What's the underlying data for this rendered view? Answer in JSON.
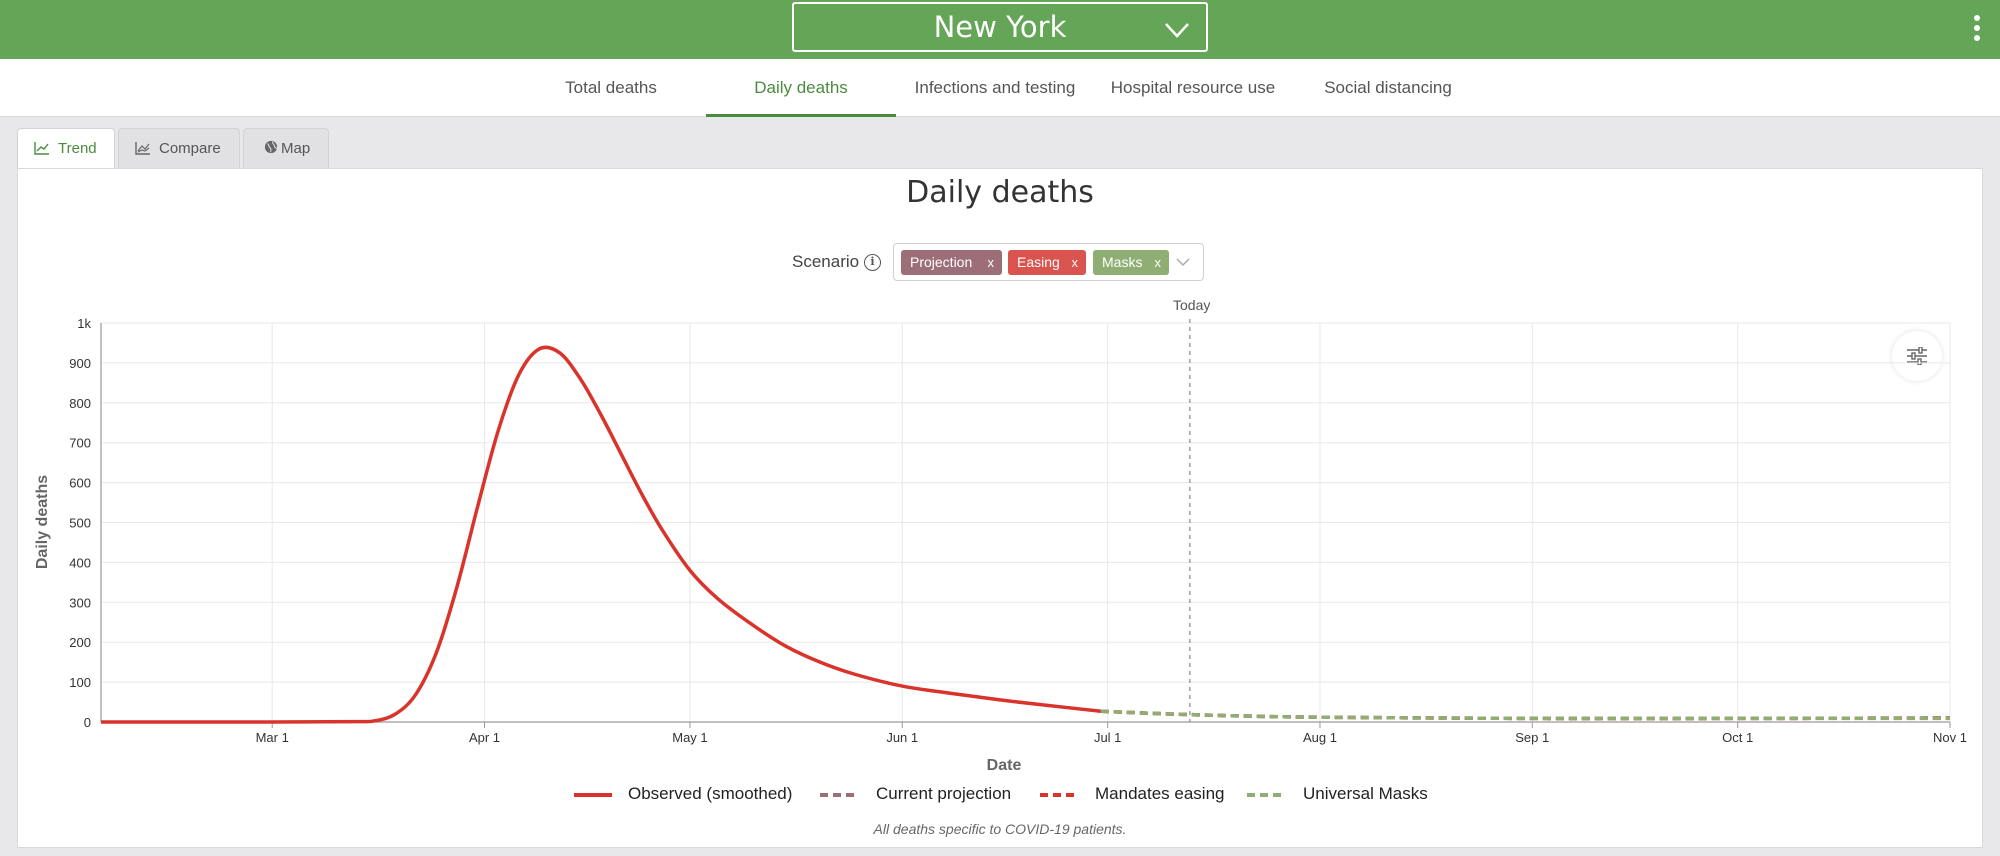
{
  "header": {
    "location": "New York",
    "menu_icon": "kebab-menu-icon",
    "background": "#64a557"
  },
  "tabs": [
    {
      "label": "Total deaths",
      "active": false
    },
    {
      "label": "Daily deaths",
      "active": true
    },
    {
      "label": "Infections and testing",
      "active": false
    },
    {
      "label": "Hospital resource use",
      "active": false
    },
    {
      "label": "Social distancing",
      "active": false
    }
  ],
  "view_tabs": [
    {
      "label": "Trend",
      "icon": "line-chart-icon",
      "active": true
    },
    {
      "label": "Compare",
      "icon": "compare-chart-icon",
      "active": false
    },
    {
      "label": "Map",
      "icon": "globe-icon",
      "active": false
    }
  ],
  "scenario": {
    "label": "Scenario",
    "chips": [
      {
        "label": "Projection",
        "color": "#9b6e78"
      },
      {
        "label": "Easing",
        "color": "#d9534f"
      },
      {
        "label": "Masks",
        "color": "#8fae74"
      }
    ]
  },
  "chart_data": {
    "type": "line",
    "title": "Daily deaths",
    "xlabel": "Date",
    "ylabel": "Daily deaths",
    "ylim": [
      0,
      1000
    ],
    "y_ticks": [
      0,
      100,
      200,
      300,
      400,
      500,
      600,
      700,
      800,
      900,
      1000
    ],
    "y_tick_labels": [
      "0",
      "100",
      "200",
      "300",
      "400",
      "500",
      "600",
      "700",
      "800",
      "900",
      "1k"
    ],
    "x_range": [
      "2020-02-05",
      "2020-11-01"
    ],
    "x_ticks": [
      {
        "date": "2020-03-01",
        "label": "Mar 1"
      },
      {
        "date": "2020-04-01",
        "label": "Apr 1"
      },
      {
        "date": "2020-05-01",
        "label": "May 1"
      },
      {
        "date": "2020-06-01",
        "label": "Jun 1"
      },
      {
        "date": "2020-07-01",
        "label": "Jul 1"
      },
      {
        "date": "2020-08-01",
        "label": "Aug 1"
      },
      {
        "date": "2020-09-01",
        "label": "Sep 1"
      },
      {
        "date": "2020-10-01",
        "label": "Oct 1"
      },
      {
        "date": "2020-11-01",
        "label": "Nov 1"
      }
    ],
    "today": {
      "date": "2020-07-13",
      "label": "Today"
    },
    "grid": true,
    "legend_position": "bottom",
    "series": [
      {
        "name": "Observed (smoothed)",
        "color": "#d9342b",
        "style": "solid",
        "points": [
          [
            "2020-02-05",
            0
          ],
          [
            "2020-03-01",
            0
          ],
          [
            "2020-03-13",
            1
          ],
          [
            "2020-03-16",
            3
          ],
          [
            "2020-03-19",
            20
          ],
          [
            "2020-03-22",
            70
          ],
          [
            "2020-03-25",
            175
          ],
          [
            "2020-03-28",
            340
          ],
          [
            "2020-03-31",
            540
          ],
          [
            "2020-04-03",
            730
          ],
          [
            "2020-04-06",
            870
          ],
          [
            "2020-04-09",
            935
          ],
          [
            "2020-04-12",
            925
          ],
          [
            "2020-04-15",
            860
          ],
          [
            "2020-04-18",
            770
          ],
          [
            "2020-04-21",
            670
          ],
          [
            "2020-04-24",
            570
          ],
          [
            "2020-04-27",
            480
          ],
          [
            "2020-05-01",
            380
          ],
          [
            "2020-05-05",
            310
          ],
          [
            "2020-05-10",
            245
          ],
          [
            "2020-05-15",
            190
          ],
          [
            "2020-05-20",
            150
          ],
          [
            "2020-05-25",
            120
          ],
          [
            "2020-06-01",
            90
          ],
          [
            "2020-06-08",
            72
          ],
          [
            "2020-06-15",
            56
          ],
          [
            "2020-06-22",
            42
          ],
          [
            "2020-06-30",
            27
          ]
        ]
      },
      {
        "name": "Current projection",
        "color": "#9b6e78",
        "style": "dashed",
        "points": [
          [
            "2020-06-30",
            27
          ],
          [
            "2020-07-07",
            22
          ],
          [
            "2020-07-14",
            18
          ],
          [
            "2020-07-21",
            15
          ],
          [
            "2020-08-01",
            12
          ],
          [
            "2020-09-01",
            9
          ],
          [
            "2020-10-01",
            9
          ],
          [
            "2020-11-01",
            10
          ]
        ]
      },
      {
        "name": "Mandates easing",
        "color": "#d9342b",
        "style": "dashed",
        "points": [
          [
            "2020-06-30",
            27
          ],
          [
            "2020-07-07",
            22
          ],
          [
            "2020-07-14",
            18
          ],
          [
            "2020-07-21",
            15
          ],
          [
            "2020-08-01",
            12
          ],
          [
            "2020-09-01",
            9
          ],
          [
            "2020-10-01",
            9
          ],
          [
            "2020-11-01",
            10
          ]
        ]
      },
      {
        "name": "Universal Masks",
        "color": "#8fae74",
        "style": "dashed",
        "points": [
          [
            "2020-06-30",
            27
          ],
          [
            "2020-07-07",
            22
          ],
          [
            "2020-07-14",
            18
          ],
          [
            "2020-07-21",
            15
          ],
          [
            "2020-08-01",
            12
          ],
          [
            "2020-09-01",
            9
          ],
          [
            "2020-10-01",
            9
          ],
          [
            "2020-11-01",
            9
          ]
        ]
      }
    ],
    "footnote": "All deaths specific to COVID-19 patients."
  }
}
